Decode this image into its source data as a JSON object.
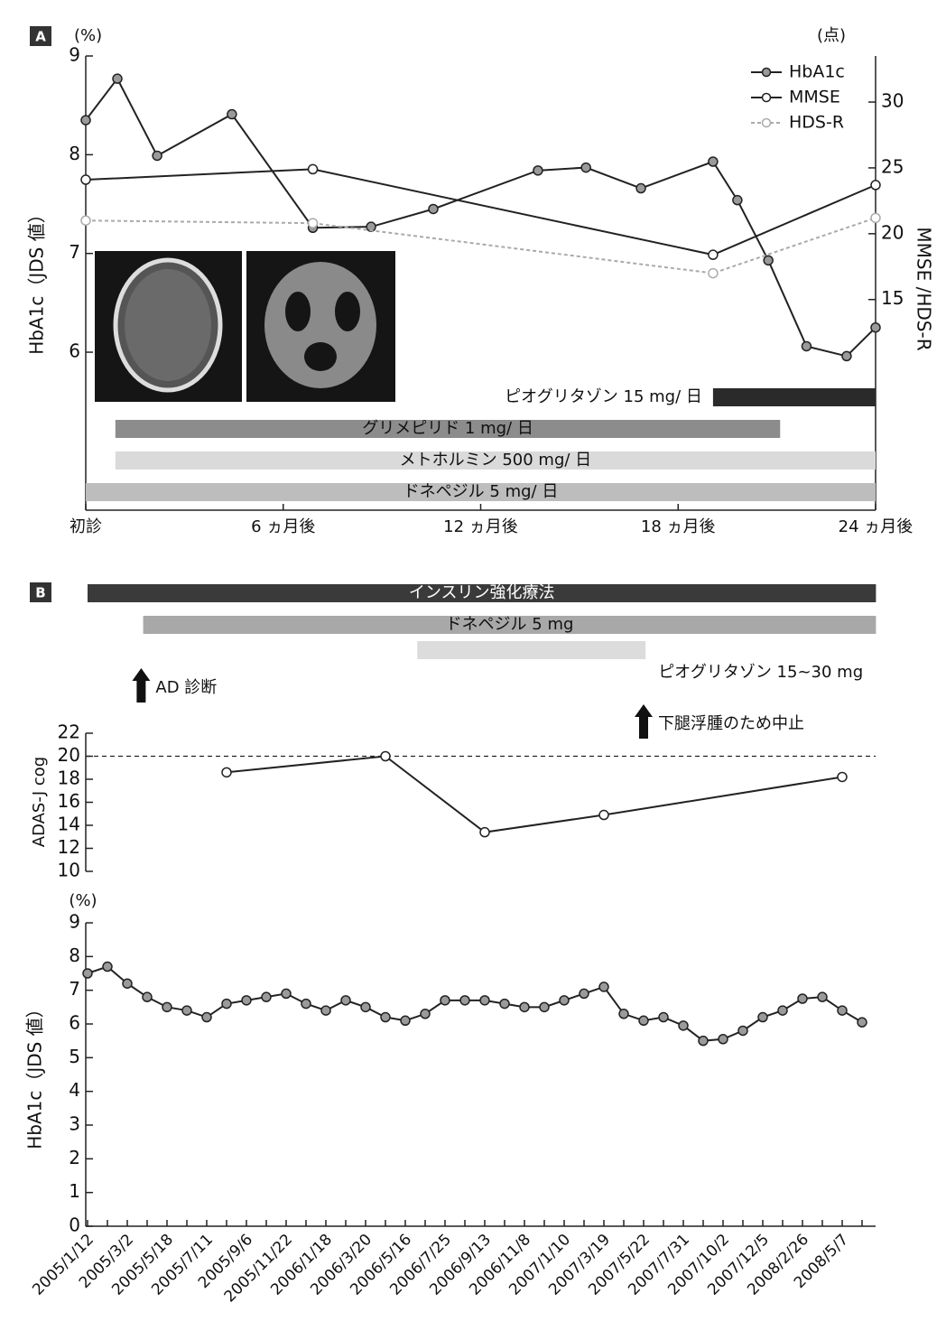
{
  "chart_data": [
    {
      "type": "line",
      "label": "A",
      "ylabel": "HbA1c（JDS 値）",
      "yunit": "(%)",
      "y2label": "MMSE /HDS-R",
      "y2unit": "(点)",
      "ylim": [
        4.4,
        9
      ],
      "yticks": [
        6,
        7,
        8,
        9
      ],
      "y2lim": [
        -1,
        33.5
      ],
      "y2ticks": [
        15,
        20,
        25,
        30
      ],
      "xlim": [
        0,
        24
      ],
      "xticks": [
        {
          "value": 0,
          "label": "初診"
        },
        {
          "value": 6,
          "label": "6 ヵ月後"
        },
        {
          "value": 12,
          "label": "12 ヵ月後"
        },
        {
          "value": 18,
          "label": "18 ヵ月後"
        },
        {
          "value": 24,
          "label": "24 ヵ月後"
        }
      ],
      "legend": "top-right",
      "series": [
        {
          "name": "HbA1c",
          "color": "#222222",
          "marker_fill": "#9a9a9a",
          "x": [
            0,
            0.96,
            2.17,
            4.44,
            6.9,
            8.67,
            10.56,
            13.74,
            15.2,
            16.87,
            19.06,
            19.8,
            20.74,
            21.9,
            23.12,
            24
          ],
          "values": [
            8.35,
            8.77,
            7.99,
            8.41,
            7.26,
            7.27,
            7.45,
            7.84,
            7.87,
            7.66,
            7.93,
            7.54,
            6.93,
            6.06,
            5.96,
            6.25
          ]
        },
        {
          "name": "MMSE",
          "color": "#222222",
          "marker_fill": "#ffffff",
          "axis": "y2",
          "x": [
            0,
            6.9,
            19.06,
            24
          ],
          "values": [
            24.1,
            24.9,
            18.4,
            23.7
          ]
        },
        {
          "name": "HDS-R",
          "color": "#aaaaaa",
          "marker_fill": "#ffffff",
          "axis": "y2",
          "dash": true,
          "x": [
            0,
            6.9,
            19.06,
            24
          ],
          "values": [
            21,
            20.8,
            17,
            21.2
          ]
        }
      ],
      "periods": [
        {
          "label": "ピオグリタゾン 15 mg/ 日",
          "start": 19.06,
          "end": 24,
          "color": "#2a2a2a"
        },
        {
          "label": "グリメピリド 1 mg/ 日",
          "start": 0.9,
          "end": 21.1,
          "color": "#8c8c8c"
        },
        {
          "label": "メトホルミン 500 mg/ 日",
          "start": 0.9,
          "end": 24,
          "color": "#dadada"
        },
        {
          "label": "ドネペジル 5 mg/ 日",
          "start": 0,
          "end": 24,
          "color": "#bdbdbd"
        }
      ]
    },
    {
      "type": "line",
      "label": "B",
      "ylabel": "ADAS-J cog",
      "ylim": [
        10,
        22
      ],
      "yticks": [
        10,
        12,
        14,
        16,
        18,
        20,
        22
      ],
      "reference_line": 20,
      "series": [
        {
          "color": "#222222",
          "marker_fill": "#ffffff",
          "x": [
            7,
            15,
            20,
            26,
            38
          ],
          "values": [
            18.6,
            20,
            13.4,
            14.9,
            18.2
          ]
        }
      ],
      "periods": [
        {
          "label": "インスリン強化療法",
          "start": 0,
          "end": 39.7,
          "color": "#3a3a3a"
        },
        {
          "label": "ドネペジル 5 mg",
          "start": 2.8,
          "end": 39.7,
          "color": "#a8a8a8"
        },
        {
          "label": "ピオグリタゾン 15~30 mg",
          "start": 16.6,
          "end": 28.1,
          "color": "#dcdcdc"
        }
      ],
      "annotations": [
        {
          "text": "AD 診断",
          "x": 2.7
        },
        {
          "text": "下腿浮腫のため中止",
          "x": 28
        }
      ]
    },
    {
      "type": "line",
      "ylabel": "HbA1c（JDS 値）",
      "yunit": "(%)",
      "ylim": [
        0,
        9
      ],
      "yticks": [
        0,
        1,
        2,
        3,
        4,
        5,
        6,
        7,
        8,
        9
      ],
      "categories": [
        "2005/1/12",
        null,
        "2005/3/2",
        null,
        "2005/5/18",
        null,
        "2005/7/11",
        null,
        "2005/9/6",
        null,
        "2005/11/22",
        null,
        "2006/1/18",
        null,
        "2006/3/20",
        null,
        "2006/5/16",
        null,
        "2006/7/25",
        null,
        "2006/9/13",
        null,
        "2006/11/8",
        null,
        "2007/1/10",
        null,
        "2007/3/19",
        null,
        "2007/5/22",
        null,
        "2007/7/31",
        null,
        "2007/10/2",
        null,
        "2007/12/5",
        null,
        "2008/2/26",
        null,
        "2008/5/7",
        null
      ],
      "series": [
        {
          "color": "#222222",
          "marker_fill": "#9a9a9a",
          "values": [
            7.5,
            7.7,
            7.2,
            6.8,
            6.5,
            6.4,
            6.2,
            6.6,
            6.7,
            6.8,
            6.9,
            6.6,
            6.4,
            6.7,
            6.5,
            6.2,
            6.1,
            6.3,
            6.7,
            6.7,
            6.7,
            6.6,
            6.5,
            6.5,
            6.7,
            6.9,
            7.1,
            6.3,
            6.1,
            6.2,
            5.95,
            5.5,
            5.55,
            5.8,
            6.2,
            6.4,
            6.75,
            6.8,
            6.4,
            6.05
          ]
        }
      ]
    }
  ]
}
